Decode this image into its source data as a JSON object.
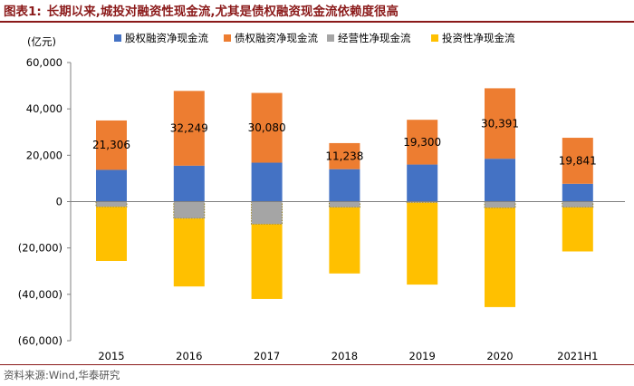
{
  "title": {
    "prefix": "图表1:",
    "text": "长期以来,城投对融资性现金流,尤其是债权融资现金流依赖度很高"
  },
  "source": "资料来源:Wind,华泰研究",
  "colors": {
    "title": "#8b1a1a",
    "equity": "#4472c4",
    "debt": "#ed7d31",
    "operating": "#a5a5a5",
    "investing": "#ffc000"
  },
  "chart_data": {
    "type": "bar",
    "stacked": true,
    "unit_label": "(亿元)",
    "categories": [
      "2015",
      "2016",
      "2017",
      "2018",
      "2019",
      "2020",
      "2021H1"
    ],
    "series": [
      {
        "key": "equity",
        "name": "股权融资净现金流",
        "values": [
          13700,
          15500,
          16800,
          14000,
          16000,
          18500,
          7700
        ]
      },
      {
        "key": "debt",
        "name": "债权融资净现金流",
        "values": [
          21306,
          32249,
          30080,
          11238,
          19300,
          30391,
          19841
        ]
      },
      {
        "key": "operating",
        "name": "经营性净现金流",
        "values": [
          -2300,
          -7300,
          -9800,
          -2500,
          -500,
          -2700,
          -2500
        ]
      },
      {
        "key": "investing",
        "name": "投资性净现金流",
        "values": [
          -23300,
          -29300,
          -32200,
          -28500,
          -35300,
          -42800,
          -19000
        ]
      }
    ],
    "data_labels": {
      "series": "debt",
      "text": [
        "21,306",
        "32,249",
        "30,080",
        "11,238",
        "19,300",
        "30,391",
        "19,841"
      ]
    },
    "ylim": [
      -60000,
      60000
    ],
    "yticks": [
      60000,
      40000,
      20000,
      0,
      -20000,
      -40000,
      -60000
    ],
    "ytick_labels": [
      "60,000",
      "40,000",
      "20,000",
      "0",
      "(20,000)",
      "(40,000)",
      "(60,000)"
    ],
    "legend_position": "top"
  }
}
